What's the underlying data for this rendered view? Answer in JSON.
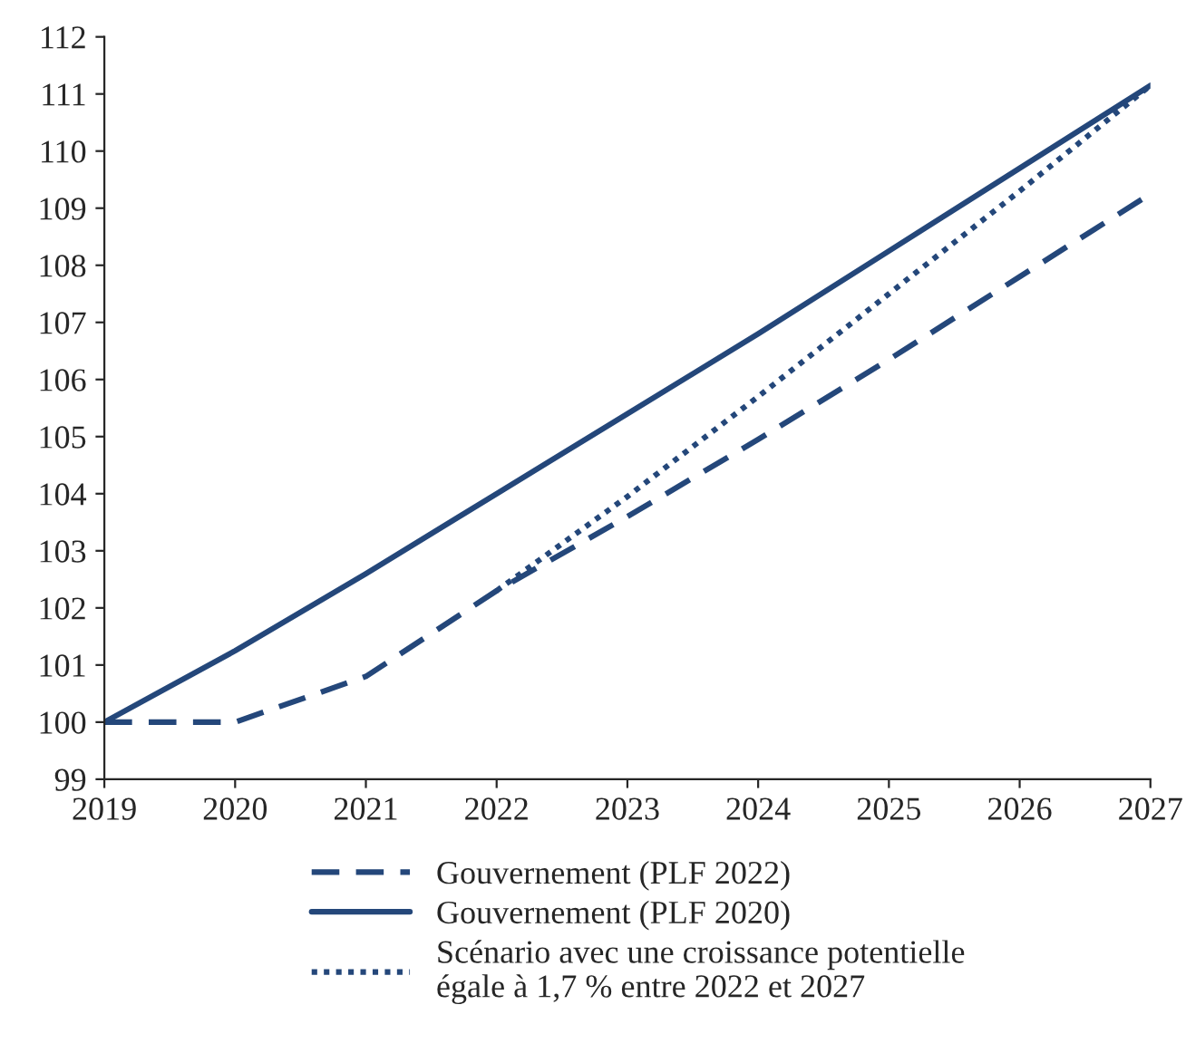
{
  "chart_data": {
    "type": "line",
    "x": [
      2019,
      2020,
      2021,
      2022,
      2023,
      2024,
      2025,
      2026,
      2027
    ],
    "series": [
      {
        "name": "Gouvernement (PLF 2022)",
        "color": "#24477a",
        "line_style": "dashed",
        "values": [
          100,
          100,
          100.8,
          102.3,
          103.6,
          104.95,
          106.35,
          107.8,
          109.25
        ]
      },
      {
        "name": "Gouvernement (PLF 2020)",
        "color": "#24477a",
        "line_style": "solid",
        "values": [
          100,
          101.25,
          102.6,
          104.0,
          105.4,
          106.8,
          108.25,
          109.7,
          111.15
        ]
      },
      {
        "name": "Scénario avec une croissance potentielle\négale à 1,7 % entre 2022 et 2027",
        "color": "#24477a",
        "line_style": "dotted",
        "values": [
          null,
          null,
          null,
          102.3,
          103.95,
          105.7,
          107.5,
          109.3,
          111.15
        ]
      }
    ],
    "xlim": [
      2019,
      2027
    ],
    "xticks": [
      2019,
      2020,
      2021,
      2022,
      2023,
      2024,
      2025,
      2026,
      2027
    ],
    "ylim": [
      99,
      112
    ],
    "yticks": [
      99,
      100,
      101,
      102,
      103,
      104,
      105,
      106,
      107,
      108,
      109,
      110,
      111,
      112
    ],
    "grid": false,
    "legend": "bottom",
    "marker": "none"
  }
}
